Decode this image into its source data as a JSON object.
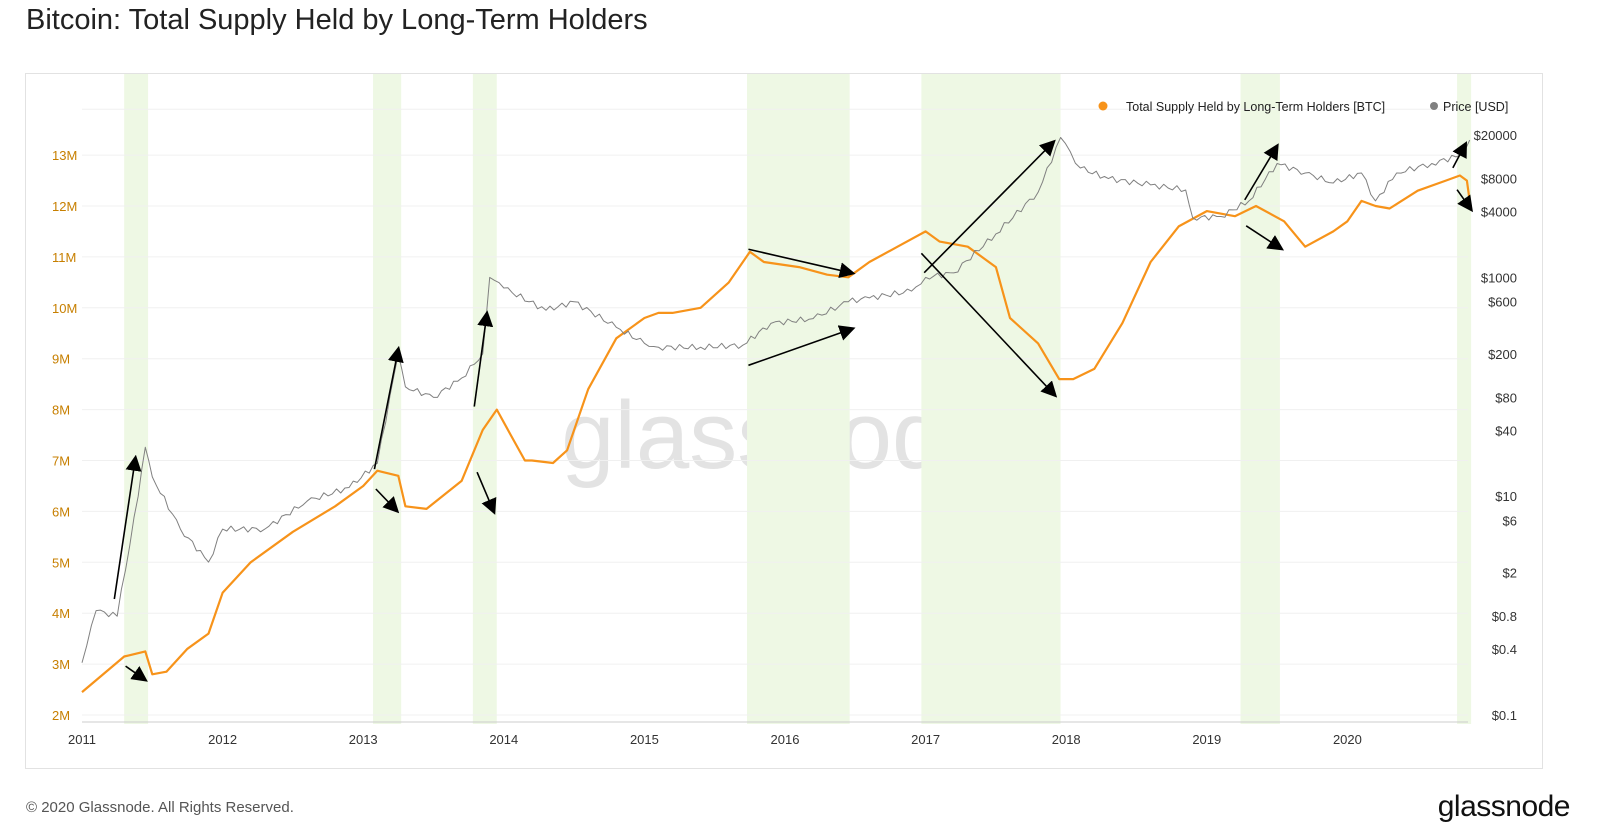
{
  "chart_data": {
    "type": "line",
    "title": "Bitcoin: Total Supply Held by Long-Term Holders",
    "x_ticks": [
      "2011",
      "2012",
      "2013",
      "2014",
      "2015",
      "2016",
      "2017",
      "2018",
      "2019",
      "2020"
    ],
    "x_tick_values": [
      2011,
      2012,
      2013,
      2014,
      2015,
      2016,
      2017,
      2018,
      2019,
      2020
    ],
    "xlim": [
      2011,
      2020.9
    ],
    "left_axis": {
      "ticks": [
        "2M",
        "3M",
        "4M",
        "5M",
        "6M",
        "7M",
        "8M",
        "9M",
        "10M",
        "11M",
        "12M",
        "13M"
      ],
      "tick_values": [
        2,
        3,
        4,
        5,
        6,
        7,
        8,
        9,
        10,
        11,
        12,
        13
      ],
      "ylim": [
        2,
        13.5
      ],
      "unit": "M BTC",
      "color": "#c77f00"
    },
    "right_axis": {
      "scale": "log",
      "ticks": [
        "$0.1",
        "$0.4",
        "$0.8",
        "$2",
        "$6",
        "$10",
        "$40",
        "$80",
        "$200",
        "$600",
        "$1000",
        "$4000",
        "$8000",
        "$20000"
      ],
      "tick_values": [
        0.1,
        0.4,
        0.8,
        2,
        6,
        10,
        40,
        80,
        200,
        600,
        1000,
        4000,
        8000,
        20000
      ],
      "ylim": [
        0.1,
        20000
      ]
    },
    "legend": {
      "placement": "top-right",
      "entries": [
        {
          "label": "Total Supply Held by Long-Term Holders [BTC]",
          "color": "#f7931a"
        },
        {
          "label": "Price [USD]",
          "color": "#808080"
        }
      ]
    },
    "series": [
      {
        "name": "Total Supply Held by Long-Term Holders [BTC]",
        "axis": "left",
        "color": "#f7931a",
        "x": [
          2011.0,
          2011.3,
          2011.45,
          2011.5,
          2011.6,
          2011.75,
          2011.9,
          2012.0,
          2012.2,
          2012.5,
          2012.8,
          2013.0,
          2013.1,
          2013.25,
          2013.3,
          2013.45,
          2013.7,
          2013.85,
          2013.95,
          2014.05,
          2014.15,
          2014.2,
          2014.35,
          2014.45,
          2014.6,
          2014.8,
          2015.0,
          2015.1,
          2015.2,
          2015.4,
          2015.6,
          2015.75,
          2015.85,
          2016.1,
          2016.3,
          2016.45,
          2016.6,
          2016.8,
          2017.0,
          2017.1,
          2017.3,
          2017.5,
          2017.6,
          2017.8,
          2017.95,
          2018.05,
          2018.2,
          2018.4,
          2018.6,
          2018.8,
          2019.0,
          2019.2,
          2019.35,
          2019.55,
          2019.7,
          2019.9,
          2020.0,
          2020.1,
          2020.2,
          2020.3,
          2020.5,
          2020.7,
          2020.8,
          2020.85,
          2020.87
        ],
        "y": [
          2.45,
          3.15,
          3.25,
          2.8,
          2.85,
          3.3,
          3.6,
          4.4,
          5.0,
          5.6,
          6.1,
          6.5,
          6.8,
          6.7,
          6.1,
          6.05,
          6.6,
          7.6,
          8.0,
          7.5,
          7.0,
          7.0,
          6.95,
          7.2,
          8.4,
          9.4,
          9.8,
          9.9,
          9.9,
          10.0,
          10.5,
          11.1,
          10.9,
          10.8,
          10.65,
          10.6,
          10.9,
          11.2,
          11.5,
          11.3,
          11.2,
          10.8,
          9.8,
          9.3,
          8.6,
          8.6,
          8.8,
          9.7,
          10.9,
          11.6,
          11.9,
          11.8,
          12.0,
          11.7,
          11.2,
          11.5,
          11.7,
          12.1,
          12.0,
          11.95,
          12.3,
          12.5,
          12.6,
          12.5,
          12.1
        ]
      },
      {
        "name": "Price [USD]",
        "axis": "right",
        "color": "#808080",
        "x": [
          2011.0,
          2011.1,
          2011.25,
          2011.4,
          2011.45,
          2011.5,
          2011.7,
          2011.9,
          2012.0,
          2012.3,
          2012.6,
          2012.9,
          2013.1,
          2013.25,
          2013.3,
          2013.5,
          2013.7,
          2013.85,
          2013.9,
          2014.0,
          2014.3,
          2014.5,
          2014.8,
          2015.0,
          2015.1,
          2015.4,
          2015.7,
          2015.9,
          2016.2,
          2016.45,
          2016.6,
          2016.9,
          2017.0,
          2017.2,
          2017.5,
          2017.8,
          2017.96,
          2018.1,
          2018.3,
          2018.6,
          2018.85,
          2018.9,
          2019.1,
          2019.3,
          2019.5,
          2019.7,
          2019.9,
          2020.1,
          2020.2,
          2020.35,
          2020.6,
          2020.8,
          2020.87
        ],
        "y": [
          0.3,
          0.9,
          0.8,
          10,
          28,
          15,
          5,
          2.5,
          5,
          5,
          9,
          12,
          20,
          200,
          100,
          80,
          120,
          200,
          1000,
          800,
          500,
          600,
          350,
          250,
          230,
          230,
          240,
          380,
          420,
          600,
          650,
          750,
          1000,
          1100,
          2500,
          6000,
          19000,
          10000,
          8000,
          7000,
          6300,
          3500,
          3600,
          5000,
          11000,
          9000,
          7300,
          9000,
          5000,
          9000,
          11000,
          13000,
          18000
        ]
      }
    ],
    "shaded_periods": [
      [
        2011.3,
        2011.47
      ],
      [
        2013.07,
        2013.27
      ],
      [
        2013.78,
        2013.95
      ],
      [
        2015.73,
        2016.46
      ],
      [
        2016.97,
        2017.96
      ],
      [
        2019.24,
        2019.52
      ],
      [
        2020.78,
        2020.88
      ]
    ],
    "arrows": [
      [
        2011.23,
        4.28,
        2011.38,
        7.05
      ],
      [
        2011.31,
        2.96,
        2011.45,
        2.69
      ],
      [
        2013.08,
        6.83,
        2013.25,
        9.19
      ],
      [
        2013.09,
        6.44,
        2013.24,
        6.01
      ],
      [
        2013.79,
        8.06,
        2013.88,
        9.89
      ],
      [
        2013.81,
        6.77,
        2013.93,
        5.99
      ],
      [
        2015.74,
        11.15,
        2016.48,
        10.68
      ],
      [
        2015.74,
        8.87,
        2016.48,
        9.59
      ],
      [
        2016.99,
        10.69,
        2017.91,
        13.26
      ],
      [
        2016.97,
        11.07,
        2017.92,
        8.28
      ],
      [
        2019.27,
        12.12,
        2019.5,
        13.18
      ],
      [
        2019.28,
        11.61,
        2019.53,
        11.16
      ],
      [
        2020.75,
        12.75,
        2020.84,
        13.22
      ],
      [
        2020.78,
        12.32,
        2020.88,
        11.93
      ]
    ],
    "watermark": "glassnode"
  },
  "footer": {
    "copyright": "© 2020 Glassnode. All Rights Reserved.",
    "logo": "glassnode"
  }
}
